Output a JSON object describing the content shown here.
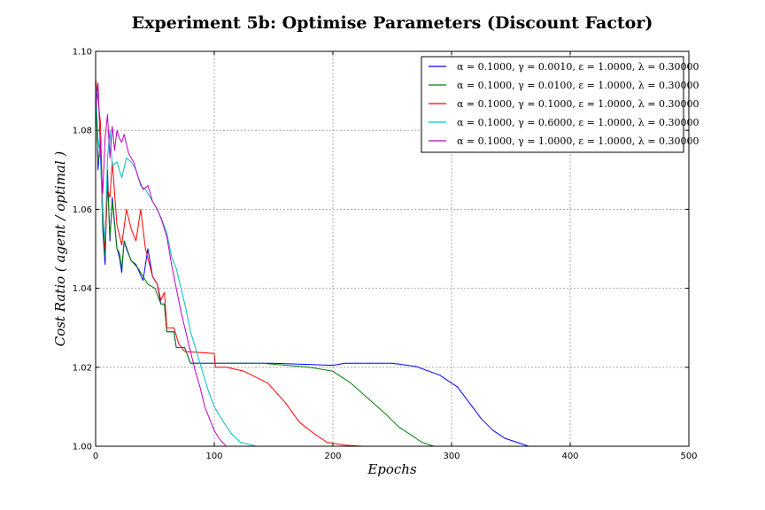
{
  "chart_data": {
    "type": "line",
    "title": "Experiment 5b: Optimise Parameters (Discount Factor)",
    "xlabel": "Epochs",
    "ylabel": "Cost Ratio ( agent / optimal )",
    "xlim": [
      0,
      500
    ],
    "ylim": [
      1.0,
      1.1
    ],
    "xticks": [
      0,
      100,
      200,
      300,
      400,
      500
    ],
    "yticks": [
      1.0,
      1.02,
      1.04,
      1.06,
      1.08,
      1.1
    ],
    "xtick_labels": [
      "0",
      "100",
      "200",
      "300",
      "400",
      "500"
    ],
    "ytick_labels": [
      "1.00",
      "1.02",
      "1.04",
      "1.06",
      "1.08",
      "1.10"
    ],
    "grid": true,
    "legend_position": "top-right",
    "series": [
      {
        "name": "α = 0.1000, γ = 0.0010, ε = 1.0000, λ = 0.30000",
        "color": "#0000ff",
        "points": [
          [
            0,
            1.092
          ],
          [
            2,
            1.07
          ],
          [
            4,
            1.078
          ],
          [
            6,
            1.055
          ],
          [
            8,
            1.046
          ],
          [
            10,
            1.07
          ],
          [
            12,
            1.052
          ],
          [
            14,
            1.063
          ],
          [
            18,
            1.05
          ],
          [
            20,
            1.048
          ],
          [
            22,
            1.044
          ],
          [
            24,
            1.052
          ],
          [
            26,
            1.05
          ],
          [
            30,
            1.047
          ],
          [
            34,
            1.046
          ],
          [
            40,
            1.042
          ],
          [
            44,
            1.05
          ],
          [
            48,
            1.043
          ],
          [
            52,
            1.041
          ],
          [
            55,
            1.036
          ],
          [
            58,
            1.036
          ],
          [
            60,
            1.029
          ],
          [
            66,
            1.029
          ],
          [
            68,
            1.025
          ],
          [
            75,
            1.025
          ],
          [
            80,
            1.021
          ],
          [
            100,
            1.021
          ],
          [
            150,
            1.021
          ],
          [
            200,
            1.0205
          ],
          [
            210,
            1.021
          ],
          [
            250,
            1.021
          ],
          [
            270,
            1.0202
          ],
          [
            290,
            1.018
          ],
          [
            305,
            1.015
          ],
          [
            315,
            1.011
          ],
          [
            325,
            1.007
          ],
          [
            335,
            1.004
          ],
          [
            345,
            1.002
          ],
          [
            355,
            1.001
          ],
          [
            365,
            1.0
          ],
          [
            500,
            1.0
          ]
        ]
      },
      {
        "name": "α = 0.1000, γ = 0.0100, ε = 1.0000, λ = 0.30000",
        "color": "#008000",
        "points": [
          [
            0,
            1.09
          ],
          [
            2,
            1.072
          ],
          [
            4,
            1.076
          ],
          [
            6,
            1.056
          ],
          [
            8,
            1.048
          ],
          [
            10,
            1.068
          ],
          [
            12,
            1.053
          ],
          [
            14,
            1.062
          ],
          [
            18,
            1.05
          ],
          [
            20,
            1.049
          ],
          [
            22,
            1.045
          ],
          [
            24,
            1.052
          ],
          [
            30,
            1.047
          ],
          [
            36,
            1.045
          ],
          [
            44,
            1.041
          ],
          [
            50,
            1.04
          ],
          [
            55,
            1.036
          ],
          [
            58,
            1.036
          ],
          [
            60,
            1.029
          ],
          [
            66,
            1.029
          ],
          [
            68,
            1.025
          ],
          [
            75,
            1.025
          ],
          [
            80,
            1.021
          ],
          [
            100,
            1.021
          ],
          [
            140,
            1.021
          ],
          [
            180,
            1.02
          ],
          [
            200,
            1.019
          ],
          [
            215,
            1.016
          ],
          [
            230,
            1.012
          ],
          [
            245,
            1.008
          ],
          [
            255,
            1.005
          ],
          [
            265,
            1.003
          ],
          [
            275,
            1.001
          ],
          [
            285,
            1.0
          ],
          [
            500,
            1.0
          ]
        ]
      },
      {
        "name": "α = 0.1000, γ = 0.1000, ε = 1.0000, λ = 0.30000",
        "color": "#ff0000",
        "points": [
          [
            0,
            1.093
          ],
          [
            2,
            1.088
          ],
          [
            4,
            1.082
          ],
          [
            6,
            1.06
          ],
          [
            8,
            1.05
          ],
          [
            10,
            1.065
          ],
          [
            12,
            1.063
          ],
          [
            14,
            1.072
          ],
          [
            18,
            1.056
          ],
          [
            22,
            1.051
          ],
          [
            26,
            1.06
          ],
          [
            30,
            1.055
          ],
          [
            34,
            1.052
          ],
          [
            38,
            1.06
          ],
          [
            42,
            1.05
          ],
          [
            48,
            1.043
          ],
          [
            52,
            1.041
          ],
          [
            55,
            1.037
          ],
          [
            58,
            1.039
          ],
          [
            60,
            1.03
          ],
          [
            66,
            1.03
          ],
          [
            70,
            1.026
          ],
          [
            75,
            1.024
          ],
          [
            100,
            1.0235
          ],
          [
            101,
            1.02
          ],
          [
            110,
            1.02
          ],
          [
            125,
            1.019
          ],
          [
            145,
            1.016
          ],
          [
            160,
            1.011
          ],
          [
            172,
            1.006
          ],
          [
            185,
            1.003
          ],
          [
            195,
            1.001
          ],
          [
            210,
            1.0003
          ],
          [
            225,
            1.0
          ],
          [
            500,
            1.0
          ]
        ]
      },
      {
        "name": "α = 0.1000, γ = 0.6000, ε = 1.0000, λ = 0.30000",
        "color": "#00bfbf",
        "points": [
          [
            0,
            1.091
          ],
          [
            2,
            1.078
          ],
          [
            4,
            1.073
          ],
          [
            6,
            1.058
          ],
          [
            8,
            1.052
          ],
          [
            10,
            1.073
          ],
          [
            12,
            1.08
          ],
          [
            14,
            1.071
          ],
          [
            18,
            1.072
          ],
          [
            22,
            1.068
          ],
          [
            26,
            1.073
          ],
          [
            30,
            1.072
          ],
          [
            34,
            1.07
          ],
          [
            38,
            1.066
          ],
          [
            42,
            1.065
          ],
          [
            46,
            1.063
          ],
          [
            50,
            1.061
          ],
          [
            55,
            1.058
          ],
          [
            60,
            1.054
          ],
          [
            64,
            1.048
          ],
          [
            68,
            1.045
          ],
          [
            72,
            1.04
          ],
          [
            76,
            1.035
          ],
          [
            80,
            1.029
          ],
          [
            85,
            1.024
          ],
          [
            90,
            1.019
          ],
          [
            95,
            1.014
          ],
          [
            100,
            1.01
          ],
          [
            108,
            1.006
          ],
          [
            115,
            1.003
          ],
          [
            122,
            1.001
          ],
          [
            135,
            1.0
          ],
          [
            500,
            1.0
          ]
        ]
      },
      {
        "name": "α = 0.1000, γ = 1.0000, ε = 1.0000, λ = 0.30000",
        "color": "#bf00bf",
        "points": [
          [
            0,
            1.085
          ],
          [
            2,
            1.092
          ],
          [
            4,
            1.075
          ],
          [
            6,
            1.064
          ],
          [
            8,
            1.078
          ],
          [
            10,
            1.084
          ],
          [
            12,
            1.073
          ],
          [
            14,
            1.081
          ],
          [
            16,
            1.075
          ],
          [
            18,
            1.08
          ],
          [
            20,
            1.078
          ],
          [
            22,
            1.077
          ],
          [
            24,
            1.079
          ],
          [
            28,
            1.074
          ],
          [
            32,
            1.072
          ],
          [
            36,
            1.068
          ],
          [
            40,
            1.065
          ],
          [
            44,
            1.066
          ],
          [
            48,
            1.062
          ],
          [
            52,
            1.06
          ],
          [
            56,
            1.057
          ],
          [
            60,
            1.053
          ],
          [
            64,
            1.046
          ],
          [
            68,
            1.04
          ],
          [
            72,
            1.034
          ],
          [
            76,
            1.029
          ],
          [
            80,
            1.024
          ],
          [
            84,
            1.019
          ],
          [
            88,
            1.015
          ],
          [
            92,
            1.01
          ],
          [
            96,
            1.007
          ],
          [
            100,
            1.004
          ],
          [
            104,
            1.002
          ],
          [
            110,
            1.0
          ],
          [
            500,
            1.0
          ]
        ]
      }
    ]
  }
}
